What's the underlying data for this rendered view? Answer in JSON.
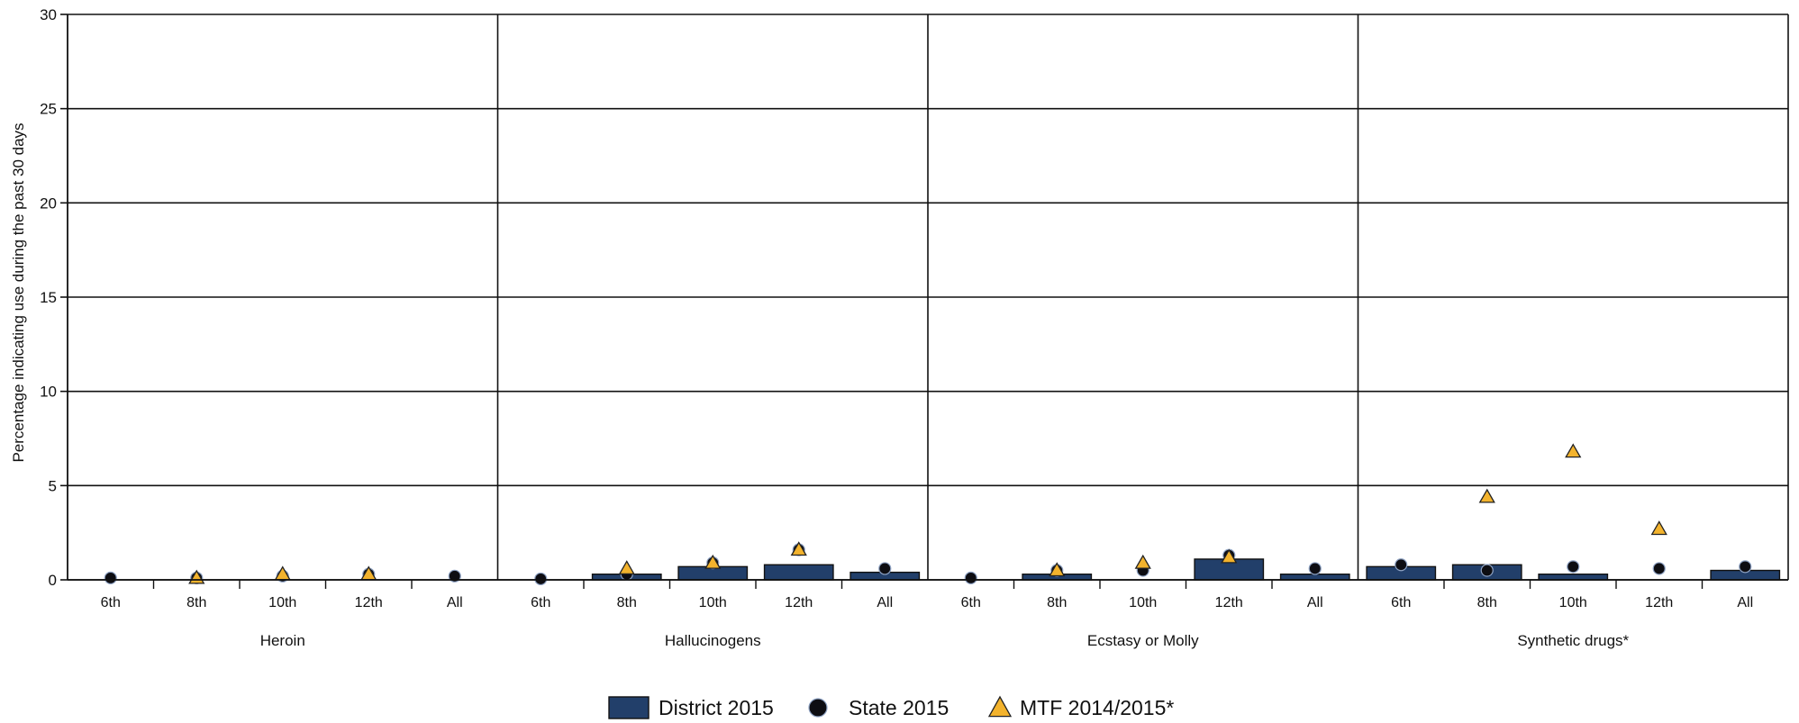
{
  "chart_data": {
    "type": "bar",
    "ylabel": "Percentage indicating use during the past 30 days",
    "ylim": [
      0,
      30
    ],
    "yticks": [
      0,
      5,
      10,
      15,
      20,
      25,
      30
    ],
    "grid": true,
    "legend_position": "bottom-center",
    "categories": [
      "6th",
      "8th",
      "10th",
      "12th",
      "All"
    ],
    "groups": [
      {
        "name": "Heroin",
        "categories": [
          "6th",
          "8th",
          "10th",
          "12th",
          "All"
        ],
        "district": [
          0,
          0,
          0,
          0,
          0
        ],
        "state": [
          0.1,
          0.1,
          0.2,
          0.3,
          0.2
        ],
        "mtf": [
          null,
          0.1,
          0.3,
          0.3,
          null
        ]
      },
      {
        "name": "Hallucinogens",
        "categories": [
          "6th",
          "8th",
          "10th",
          "12th",
          "All"
        ],
        "district": [
          0,
          0.3,
          0.7,
          0.8,
          0.4
        ],
        "state": [
          0.05,
          0.3,
          0.9,
          1.6,
          0.6
        ],
        "mtf": [
          null,
          0.6,
          0.9,
          1.6,
          null
        ]
      },
      {
        "name": "Ecstasy or Molly",
        "categories": [
          "6th",
          "8th",
          "10th",
          "12th",
          "All"
        ],
        "district": [
          0,
          0.3,
          0,
          1.1,
          0.3
        ],
        "state": [
          0.1,
          0.5,
          0.5,
          1.3,
          0.6
        ],
        "mtf": [
          null,
          0.5,
          0.9,
          1.2,
          null
        ]
      },
      {
        "name": "Synthetic drugs*",
        "categories": [
          "6th",
          "8th",
          "10th",
          "12th",
          "All"
        ],
        "district": [
          0.7,
          0.8,
          0.3,
          0,
          0.5
        ],
        "state": [
          0.8,
          0.5,
          0.7,
          0.6,
          0.7
        ],
        "mtf": [
          null,
          4.4,
          6.8,
          2.7,
          null
        ]
      }
    ],
    "series": [
      {
        "name": "District 2015",
        "kind": "bar",
        "color": "#223f6a"
      },
      {
        "name": "State 2015",
        "kind": "circle",
        "color": "#0d0d12"
      },
      {
        "name": "MTF 2014/2015*",
        "kind": "triangle",
        "color": "#f3b32d"
      }
    ]
  }
}
